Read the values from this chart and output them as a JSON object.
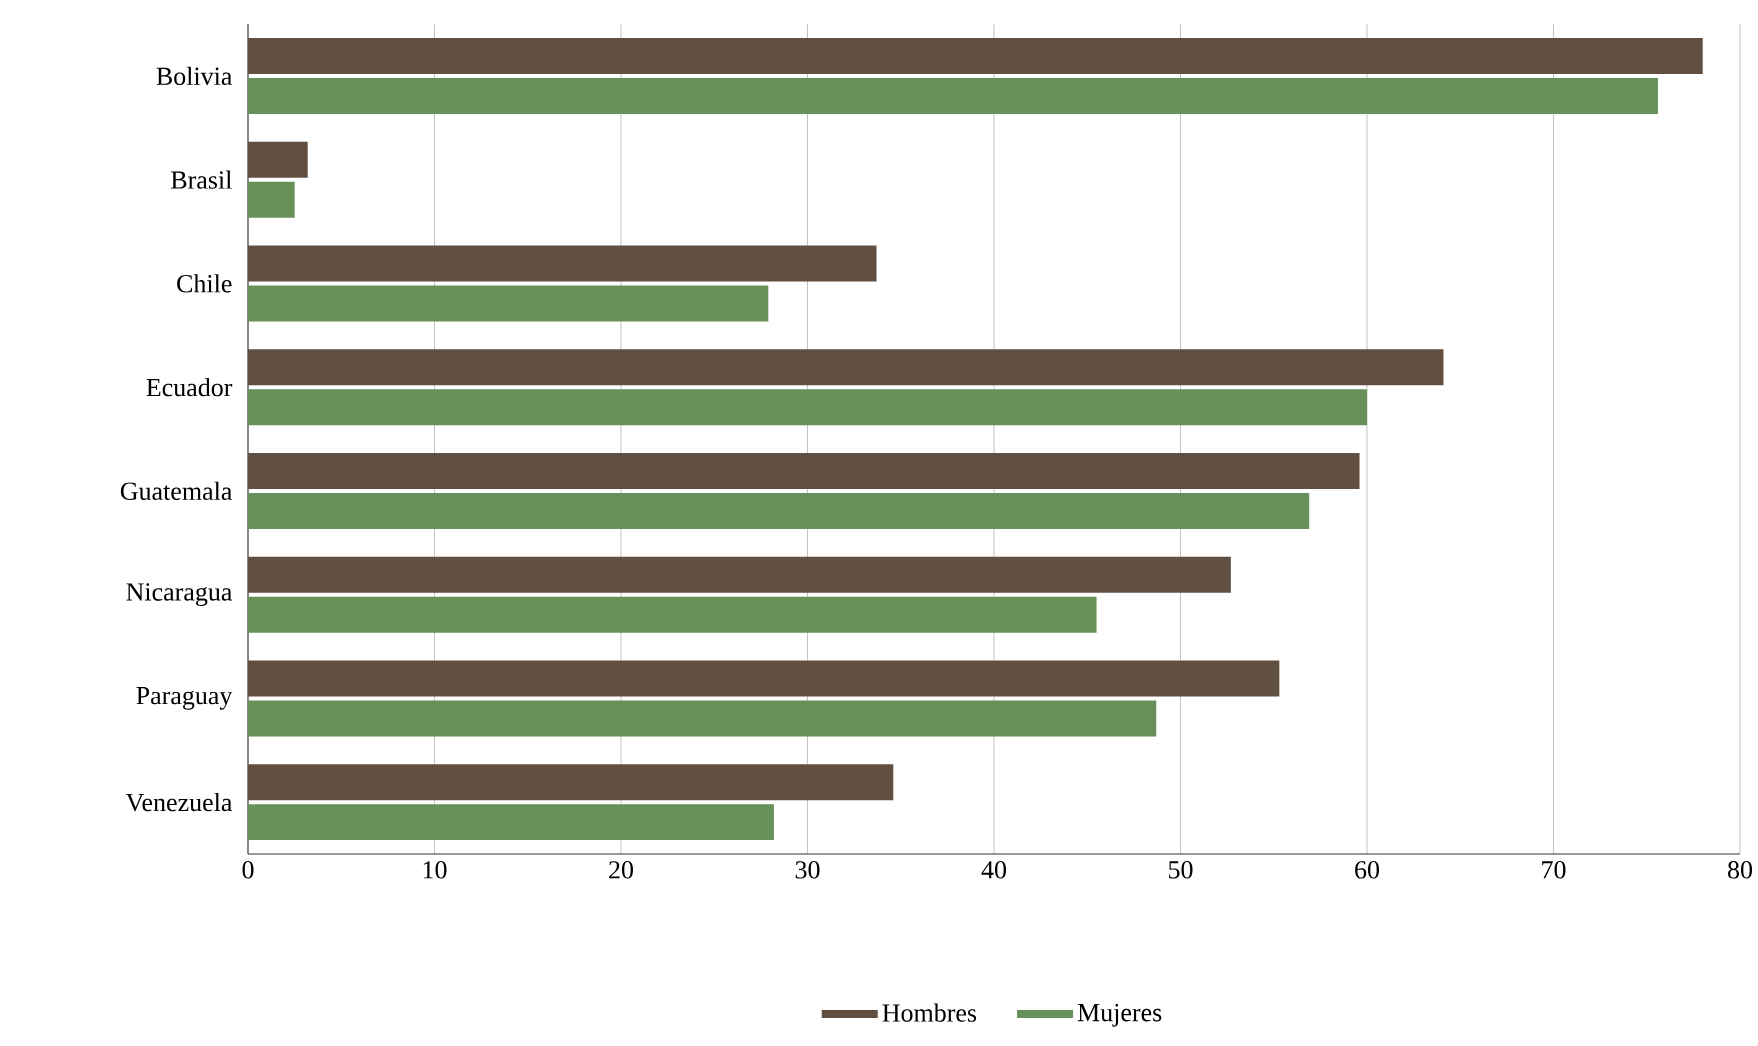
{
  "chart_data": {
    "type": "bar",
    "orientation": "horizontal",
    "categories": [
      "Bolivia",
      "Brasil",
      "Chile",
      "Ecuador",
      "Guatemala",
      "Nicaragua",
      "Paraguay",
      "Venezuela"
    ],
    "series": [
      {
        "name": "Hombres",
        "color": "#614f41",
        "values": [
          78.0,
          3.2,
          33.7,
          64.1,
          59.6,
          52.7,
          55.3,
          34.6
        ]
      },
      {
        "name": "Mujeres",
        "color": "#679159",
        "values": [
          75.6,
          2.5,
          27.9,
          60.0,
          56.9,
          45.5,
          48.7,
          28.2
        ]
      }
    ],
    "xlim": [
      0,
      80
    ],
    "xticks": [
      0,
      10,
      20,
      30,
      40,
      50,
      60,
      70,
      80
    ],
    "grid": "x",
    "legend": "bottom"
  }
}
